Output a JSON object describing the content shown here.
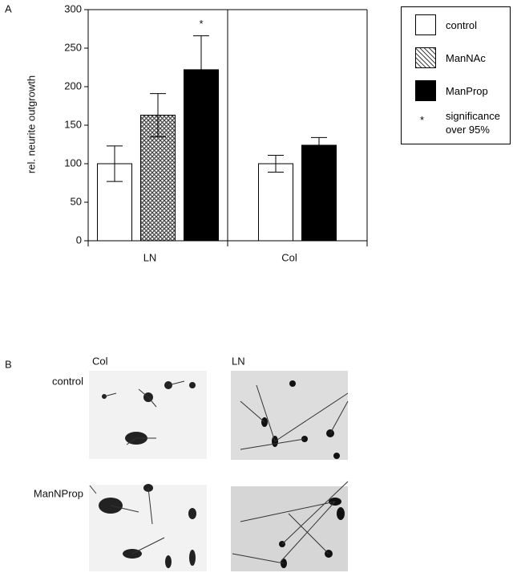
{
  "chart_data": {
    "type": "bar",
    "y_label": "rel. neurite outgrowth",
    "categories": [
      "LN",
      "Col"
    ],
    "series": [
      {
        "name": "control",
        "color": "#ffffff",
        "values": [
          100,
          100
        ],
        "errors": [
          23,
          11
        ]
      },
      {
        "name": "ManNAc",
        "color": "#555555",
        "hatch": true,
        "values": [
          163,
          null
        ],
        "errors": [
          28,
          null
        ]
      },
      {
        "name": "ManProp",
        "color": "#000000",
        "values": [
          222,
          124
        ],
        "errors": [
          44,
          10
        ]
      }
    ],
    "annotations": [
      {
        "text": "*",
        "series": 2,
        "category": 0
      }
    ],
    "legend_extra": {
      "symbol": "*",
      "text": "significance over 95%"
    },
    "ylim": [
      0,
      300
    ],
    "yticks": [
      0,
      50,
      100,
      150,
      200,
      250,
      300
    ]
  },
  "panel_labels": [
    "A",
    "B"
  ],
  "micrographs": {
    "columns": [
      "Col",
      "LN"
    ],
    "rows": [
      "control",
      "ManNProp"
    ]
  }
}
